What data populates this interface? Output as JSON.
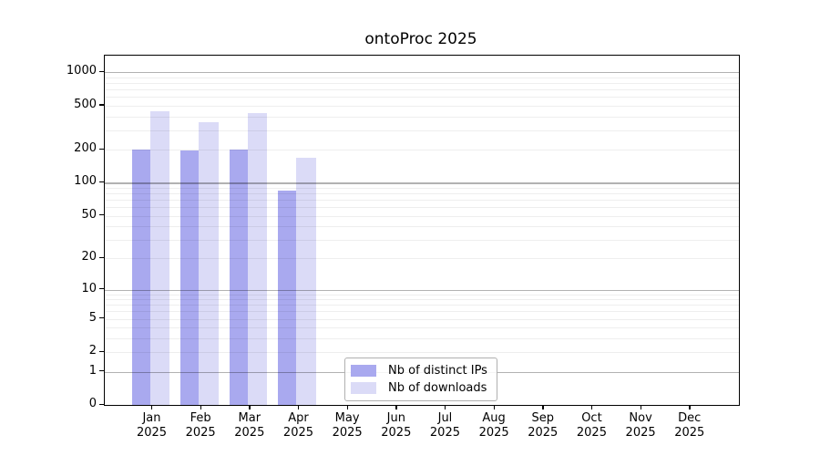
{
  "chart_data": {
    "type": "bar",
    "title": "ontoProc 2025",
    "categories": [
      "Jan",
      "Feb",
      "Mar",
      "Apr",
      "May",
      "Jun",
      "Jul",
      "Aug",
      "Sep",
      "Oct",
      "Nov",
      "Dec"
    ],
    "year": "2025",
    "series": [
      {
        "name": "Nb of distinct IPs",
        "color": "#a9a9ef",
        "values": [
          200,
          196,
          200,
          85,
          null,
          null,
          null,
          null,
          null,
          null,
          null,
          null
        ]
      },
      {
        "name": "Nb of downloads",
        "color": "#dbdbf7",
        "values": [
          448,
          352,
          430,
          168,
          null,
          null,
          null,
          null,
          null,
          null,
          null,
          null
        ]
      }
    ],
    "yscale": "log1p",
    "yticks": [
      0,
      1,
      2,
      5,
      10,
      20,
      50,
      100,
      200,
      500,
      1000
    ],
    "major_gridline_values": [
      1,
      10,
      100,
      1000
    ],
    "ylim": [
      0,
      1414
    ],
    "xlabel": "",
    "ylabel": "",
    "grid": "horizontal, major and minor, drawn over bars",
    "legend_position": "lower center"
  }
}
